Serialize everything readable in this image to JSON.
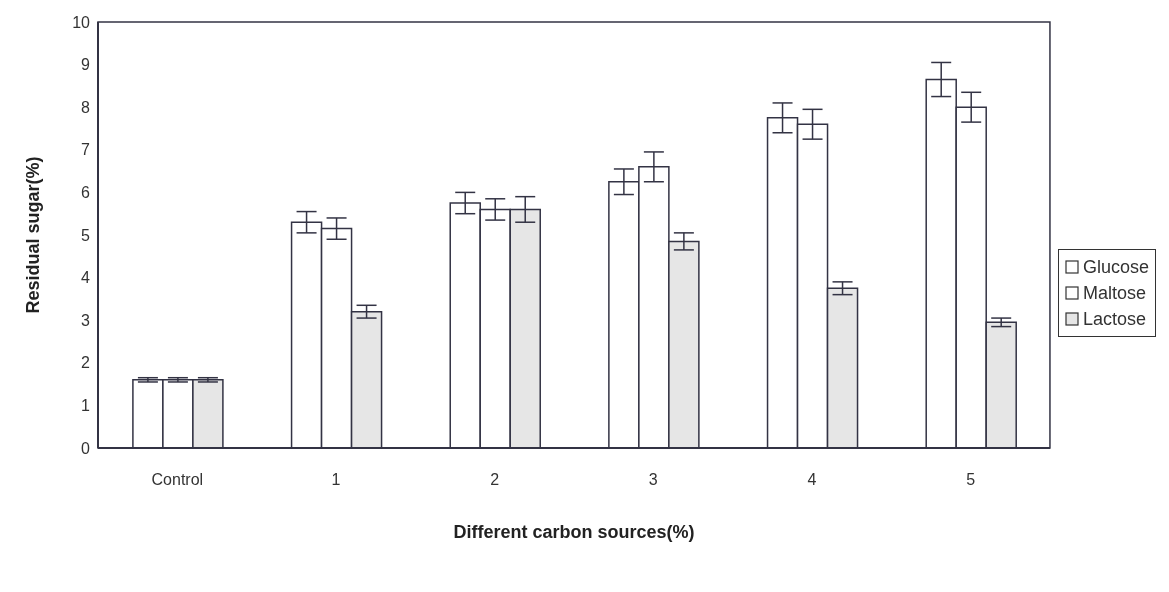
{
  "chart_data": {
    "type": "bar",
    "xlabel": "Different carbon sources(%)",
    "ylabel": "Residual sugar(%)",
    "categories": [
      "Control",
      "1",
      "2",
      "3",
      "4",
      "5"
    ],
    "series": [
      {
        "name": "Glucose",
        "color": "#ffffff",
        "values": [
          1.6,
          5.3,
          5.75,
          6.25,
          7.75,
          8.65
        ],
        "errors": [
          0.05,
          0.25,
          0.25,
          0.3,
          0.35,
          0.4
        ]
      },
      {
        "name": "Maltose",
        "color": "#ffffff",
        "values": [
          1.6,
          5.15,
          5.6,
          6.6,
          7.6,
          8.0
        ],
        "errors": [
          0.05,
          0.25,
          0.25,
          0.35,
          0.35,
          0.35
        ]
      },
      {
        "name": "Lactose",
        "color": "#e6e6e6",
        "values": [
          1.6,
          3.2,
          5.6,
          4.85,
          3.75,
          2.95
        ],
        "errors": [
          0.05,
          0.15,
          0.3,
          0.2,
          0.15,
          0.1
        ]
      }
    ],
    "ylim": [
      0,
      10
    ],
    "yticks": [
      0,
      1,
      2,
      3,
      4,
      5,
      6,
      7,
      8,
      9,
      10
    ],
    "grid": false,
    "legend": "right"
  }
}
